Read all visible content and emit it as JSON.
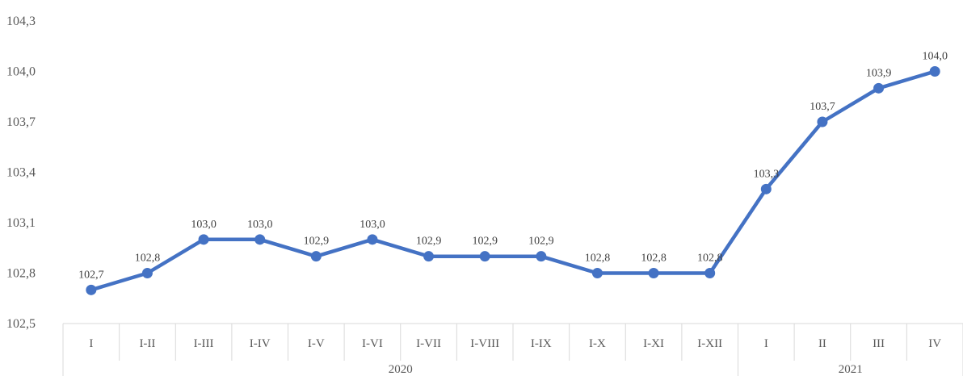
{
  "chart_data": {
    "type": "line",
    "title": "",
    "xlabel": "",
    "ylabel": "",
    "ylim": [
      102.5,
      104.3
    ],
    "yticks": [
      "102,5",
      "102,8",
      "103,1",
      "103,4",
      "103,7",
      "104,0",
      "104,3"
    ],
    "ytick_values": [
      102.5,
      102.8,
      103.1,
      103.4,
      103.7,
      104.0,
      104.3
    ],
    "categories": [
      "I",
      "I-II",
      "I-III",
      "I-IV",
      "I-V",
      "I-VI",
      "I-VII",
      "I-VIII",
      "I-IX",
      "I-X",
      "I-XI",
      "I-XII",
      "I",
      "II",
      "III",
      "IV"
    ],
    "groups": [
      {
        "label": "2020",
        "span": 12
      },
      {
        "label": "2021",
        "span": 4
      }
    ],
    "series": [
      {
        "values": [
          102.7,
          102.8,
          103.0,
          103.0,
          102.9,
          103.0,
          102.9,
          102.9,
          102.9,
          102.8,
          102.8,
          102.8,
          103.3,
          103.7,
          103.9,
          104.0
        ],
        "labels": [
          "102,7",
          "102,8",
          "103,0",
          "103,0",
          "102,9",
          "103,0",
          "102,9",
          "102,9",
          "102,9",
          "102,8",
          "102,8",
          "102,8",
          "103,3",
          "103,7",
          "103,9",
          "104,0"
        ],
        "color": "#4472C4"
      }
    ],
    "grid": false,
    "legend": "none"
  }
}
